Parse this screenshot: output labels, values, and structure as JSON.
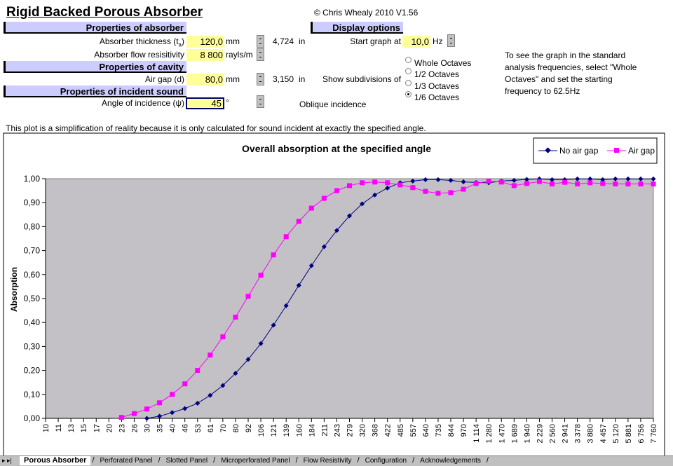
{
  "title": "Rigid Backed Porous Absorber",
  "copyright": "© Chris Whealy 2010  V1.56",
  "absorber": {
    "header": "Properties of absorber",
    "thickness_label": "Absorber thickness (t",
    "thickness_sub": "a",
    "thickness_value": "120,0",
    "thickness_unit": "mm",
    "thickness_in": "4,724",
    "in_unit": "in",
    "resistivity_label": "Absorber flow resisitivity",
    "resistivity_value": "8 800",
    "resistivity_unit": "rayls/m"
  },
  "cavity": {
    "header": "Properties of cavity",
    "airgap_label": "Air gap (d)",
    "airgap_value": "80,0",
    "airgap_unit": "mm",
    "airgap_in": "3,150",
    "in_unit": "in"
  },
  "incident": {
    "header": "Properties of incident sound",
    "angle_label": "Angle of incidence (ψ)",
    "angle_value": "45",
    "angle_unit": "°",
    "mode": "Oblique incidence"
  },
  "display": {
    "header": "Display options",
    "start_label": "Start graph at",
    "start_value": "10,0",
    "start_unit": "Hz",
    "subdiv_label": "Show subdivisions of",
    "options": [
      {
        "label": "Whole Octaves",
        "selected": false
      },
      {
        "label": "1/2 Octaves",
        "selected": false
      },
      {
        "label": "1/3 Octaves",
        "selected": false
      },
      {
        "label": "1/6 Octaves",
        "selected": true
      }
    ],
    "note": "To see the graph in the standard analysis frequencies, select \"Whole Octaves\" and set the starting frequency to 62.5Hz"
  },
  "disclaimer": "This plot is a simplification of reality because it is only calculated for sound incident at exactly the specified angle.",
  "tabs": [
    {
      "label": "Porous Absorber",
      "active": true
    },
    {
      "label": "Perforated Panel",
      "active": false
    },
    {
      "label": "Slotted Panel",
      "active": false
    },
    {
      "label": "Microperforated Panel",
      "active": false
    },
    {
      "label": "Flow Resistivity",
      "active": false
    },
    {
      "label": "Configuration",
      "active": false
    },
    {
      "label": "Acknowledgements",
      "active": false
    }
  ],
  "chart_data": {
    "type": "line",
    "title": "Overall absorption at the specified angle",
    "ylabel": "Absorption",
    "xlabel": "",
    "ylim": [
      0,
      1
    ],
    "yticks": [
      "0,00",
      "0,10",
      "0,20",
      "0,30",
      "0,40",
      "0,50",
      "0,60",
      "0,70",
      "0,80",
      "0,90",
      "1,00"
    ],
    "grid": false,
    "legend": "top-right",
    "plot_background": "#c3c1c5",
    "categories": [
      "10",
      "11",
      "13",
      "15",
      "17",
      "20",
      "23",
      "26",
      "30",
      "35",
      "40",
      "46",
      "53",
      "61",
      "70",
      "80",
      "92",
      "106",
      "121",
      "139",
      "160",
      "184",
      "211",
      "243",
      "279",
      "320",
      "368",
      "422",
      "485",
      "557",
      "640",
      "735",
      "844",
      "970",
      "1 114",
      "1 280",
      "1 470",
      "1 689",
      "1 940",
      "2 229",
      "2 560",
      "2 941",
      "3 378",
      "3 880",
      "4 457",
      "5 120",
      "5 881",
      "6 756",
      "7 760"
    ],
    "series": [
      {
        "name": "No air gap",
        "color": "#000080",
        "marker": "diamond",
        "values": [
          null,
          null,
          null,
          null,
          null,
          null,
          null,
          -0.003,
          0.0,
          0.009,
          0.024,
          0.041,
          0.063,
          0.096,
          0.137,
          0.188,
          0.246,
          0.312,
          0.389,
          0.47,
          0.555,
          0.637,
          0.716,
          0.784,
          0.845,
          0.895,
          0.932,
          0.961,
          0.983,
          0.99,
          0.996,
          0.996,
          0.993,
          0.987,
          0.984,
          0.983,
          0.99,
          0.993,
          0.997,
          0.999,
          0.996,
          0.996,
          0.999,
          0.999,
          0.996,
          0.999,
          0.999,
          0.999,
          0.999
        ]
      },
      {
        "name": "Air gap",
        "color": "#ff00ff",
        "marker": "square",
        "values": [
          null,
          null,
          null,
          null,
          null,
          -0.005,
          0.004,
          0.02,
          0.039,
          0.065,
          0.1,
          0.144,
          0.2,
          0.264,
          0.34,
          0.422,
          0.509,
          0.597,
          0.682,
          0.758,
          0.822,
          0.877,
          0.918,
          0.95,
          0.971,
          0.983,
          0.986,
          0.983,
          0.974,
          0.963,
          0.947,
          0.939,
          0.942,
          0.956,
          0.98,
          0.99,
          0.986,
          0.971,
          0.98,
          0.988,
          0.978,
          0.985,
          0.978,
          0.983,
          0.98,
          0.978,
          0.978,
          0.978,
          0.978
        ]
      }
    ]
  }
}
